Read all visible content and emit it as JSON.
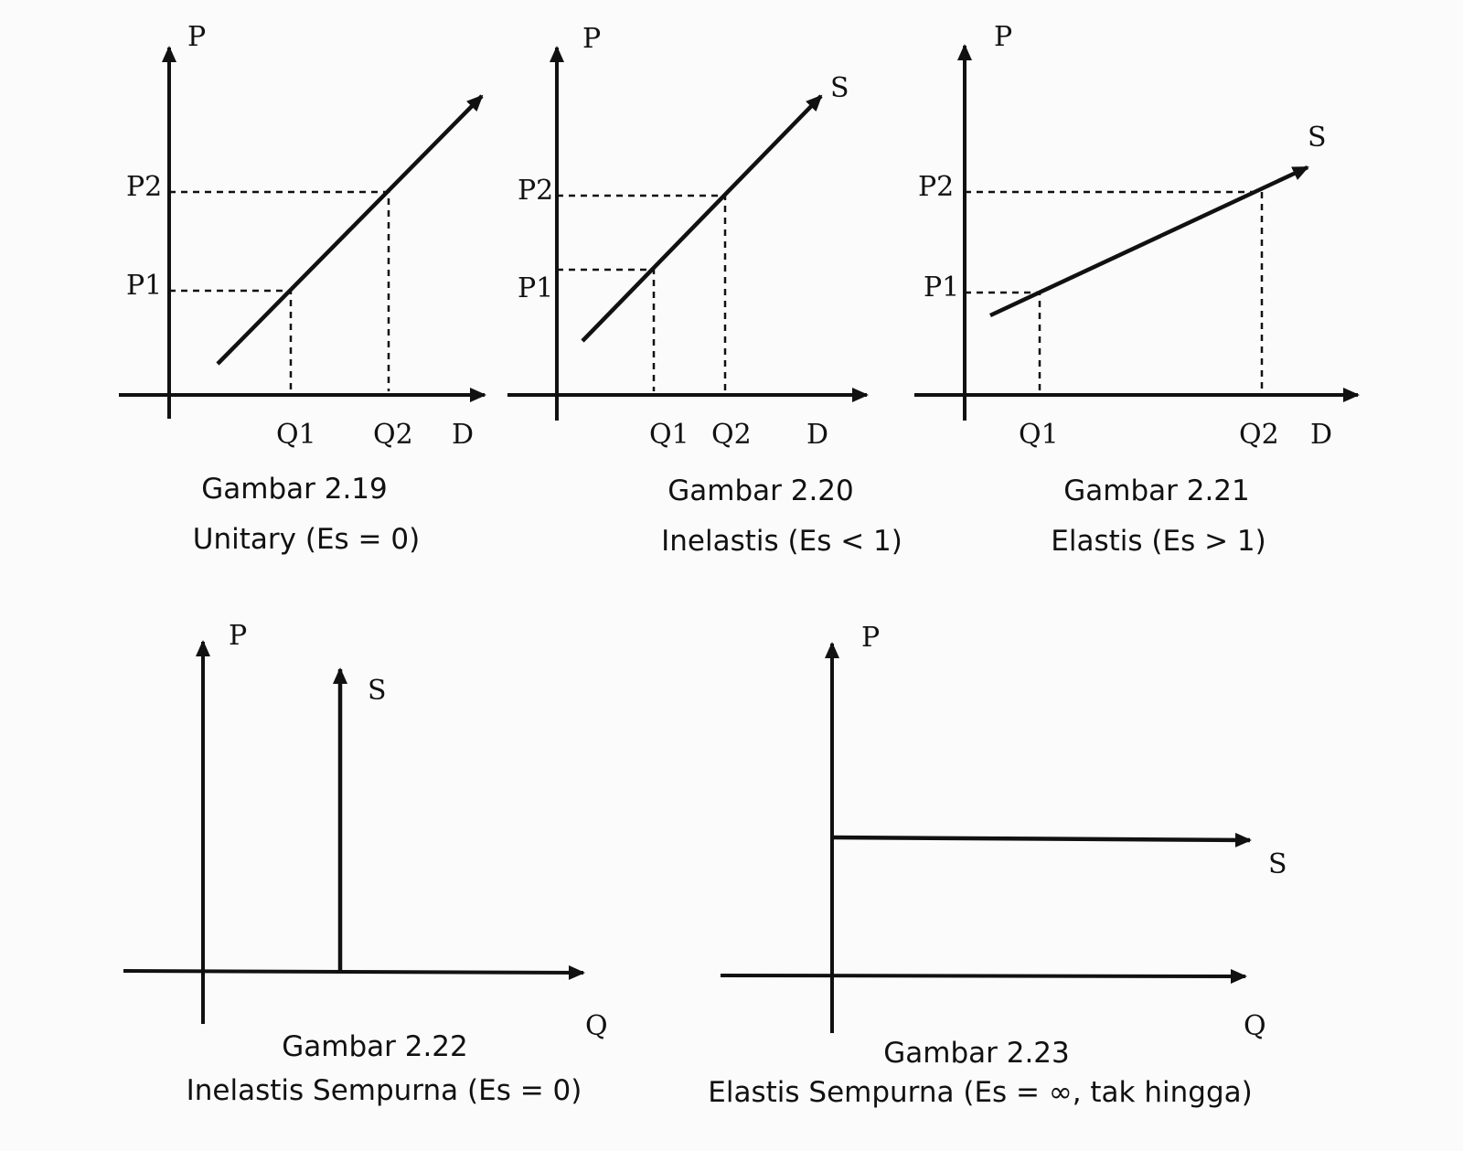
{
  "figures": [
    {
      "id": "2.19",
      "caption": "Gambar 2.19",
      "subtitle": "Unitary (Es = 0)",
      "y_label": "P",
      "x_end_label": "D",
      "price_labels": [
        "P1",
        "P2"
      ],
      "quantity_labels": [
        "Q1",
        "Q2"
      ],
      "curve_label": ""
    },
    {
      "id": "2.20",
      "caption": "Gambar 2.20",
      "subtitle": "Inelastis (Es < 1)",
      "y_label": "P",
      "x_end_label": "D",
      "price_labels": [
        "P1",
        "P2"
      ],
      "quantity_labels": [
        "Q1",
        "Q2"
      ],
      "curve_label": "S"
    },
    {
      "id": "2.21",
      "caption": "Gambar 2.21",
      "subtitle": "Elastis (Es > 1)",
      "y_label": "P",
      "x_end_label": "D",
      "price_labels": [
        "P1",
        "P2"
      ],
      "quantity_labels": [
        "Q1",
        "Q2"
      ],
      "curve_label": "S"
    },
    {
      "id": "2.22",
      "caption": "Gambar 2.22",
      "subtitle": "Inelastis Sempurna (Es = 0)",
      "y_label": "P",
      "x_label": "Q",
      "curve_label": "S"
    },
    {
      "id": "2.23",
      "caption": "Gambar 2.23",
      "subtitle": "Elastis Sempurna (Es = ∞, tak hingga)",
      "y_label": "P",
      "x_label": "Q",
      "curve_label": "S"
    }
  ]
}
